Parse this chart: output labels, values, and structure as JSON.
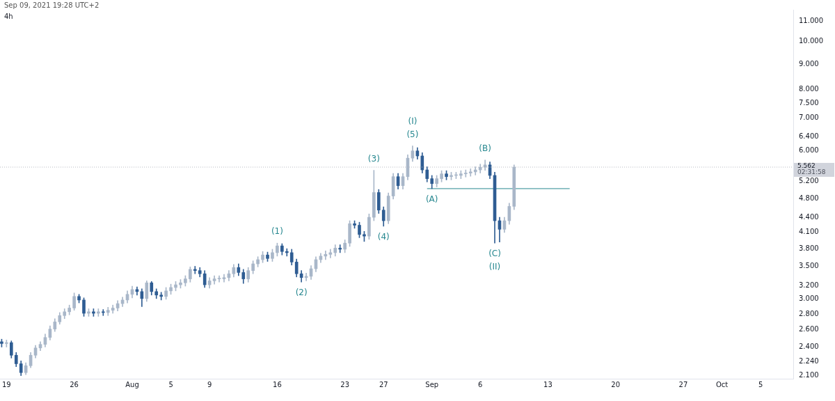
{
  "chart_data": {
    "type": "candlestick",
    "title": "4h",
    "x": [
      "2021-07-18T12:00",
      "2021-07-19T00:00",
      "2021-07-19T12:00",
      "2021-07-20T00:00",
      "2021-07-20T12:00",
      "2021-07-21T00:00",
      "2021-07-21T12:00",
      "2021-07-22T00:00",
      "2021-07-22T12:00",
      "2021-07-23T00:00",
      "2021-07-23T12:00",
      "2021-07-24T00:00",
      "2021-07-24T12:00",
      "2021-07-25T00:00",
      "2021-07-25T12:00",
      "2021-07-26T00:00",
      "2021-07-26T12:00",
      "2021-07-27T00:00",
      "2021-07-27T12:00",
      "2021-07-28T00:00",
      "2021-07-28T12:00",
      "2021-07-29T00:00",
      "2021-07-29T12:00",
      "2021-07-30T00:00",
      "2021-07-30T12:00",
      "2021-07-31T00:00",
      "2021-07-31T12:00",
      "2021-08-01T00:00",
      "2021-08-01T12:00",
      "2021-08-02T00:00",
      "2021-08-02T12:00",
      "2021-08-03T00:00",
      "2021-08-03T12:00",
      "2021-08-04T00:00",
      "2021-08-04T12:00",
      "2021-08-05T00:00",
      "2021-08-05T12:00",
      "2021-08-06T00:00",
      "2021-08-06T12:00",
      "2021-08-07T00:00",
      "2021-08-07T12:00",
      "2021-08-08T00:00",
      "2021-08-08T12:00",
      "2021-08-09T00:00",
      "2021-08-09T12:00",
      "2021-08-10T00:00",
      "2021-08-10T12:00",
      "2021-08-11T00:00",
      "2021-08-11T12:00",
      "2021-08-12T00:00",
      "2021-08-12T12:00",
      "2021-08-13T00:00",
      "2021-08-13T12:00",
      "2021-08-14T00:00",
      "2021-08-14T12:00",
      "2021-08-15T00:00",
      "2021-08-15T12:00",
      "2021-08-16T00:00",
      "2021-08-16T12:00",
      "2021-08-17T00:00",
      "2021-08-17T12:00",
      "2021-08-18T00:00",
      "2021-08-18T12:00",
      "2021-08-19T00:00",
      "2021-08-19T12:00",
      "2021-08-20T00:00",
      "2021-08-20T12:00",
      "2021-08-21T00:00",
      "2021-08-21T12:00",
      "2021-08-22T00:00",
      "2021-08-22T12:00",
      "2021-08-23T00:00",
      "2021-08-23T12:00",
      "2021-08-24T00:00",
      "2021-08-24T12:00",
      "2021-08-25T00:00",
      "2021-08-25T12:00",
      "2021-08-26T00:00",
      "2021-08-26T12:00",
      "2021-08-27T00:00",
      "2021-08-27T12:00",
      "2021-08-28T00:00",
      "2021-08-28T12:00",
      "2021-08-29T00:00",
      "2021-08-29T12:00",
      "2021-08-30T00:00",
      "2021-08-30T12:00",
      "2021-08-31T00:00",
      "2021-08-31T12:00",
      "2021-09-01T00:00",
      "2021-09-01T12:00",
      "2021-09-02T00:00",
      "2021-09-02T12:00",
      "2021-09-03T00:00",
      "2021-09-03T12:00",
      "2021-09-04T00:00",
      "2021-09-04T12:00",
      "2021-09-05T00:00",
      "2021-09-05T12:00",
      "2021-09-06T00:00",
      "2021-09-06T12:00",
      "2021-09-07T00:00",
      "2021-09-07T12:00",
      "2021-09-08T00:00",
      "2021-09-08T12:00",
      "2021-09-09T00:00",
      "2021-09-09T12:00"
    ],
    "ohlc": [
      [
        2.46,
        2.49,
        2.4,
        2.44
      ],
      [
        2.44,
        2.48,
        2.4,
        2.45
      ],
      [
        2.45,
        2.47,
        2.28,
        2.31
      ],
      [
        2.31,
        2.34,
        2.19,
        2.22
      ],
      [
        2.22,
        2.25,
        2.1,
        2.13
      ],
      [
        2.13,
        2.23,
        2.11,
        2.2
      ],
      [
        2.2,
        2.34,
        2.18,
        2.31
      ],
      [
        2.31,
        2.42,
        2.28,
        2.39
      ],
      [
        2.39,
        2.46,
        2.36,
        2.43
      ],
      [
        2.43,
        2.55,
        2.4,
        2.51
      ],
      [
        2.51,
        2.65,
        2.48,
        2.61
      ],
      [
        2.61,
        2.74,
        2.58,
        2.7
      ],
      [
        2.7,
        2.82,
        2.67,
        2.78
      ],
      [
        2.78,
        2.87,
        2.74,
        2.83
      ],
      [
        2.83,
        2.92,
        2.79,
        2.88
      ],
      [
        2.88,
        3.09,
        2.85,
        3.04
      ],
      [
        3.04,
        3.07,
        2.95,
        2.99
      ],
      [
        2.99,
        3.02,
        2.77,
        2.81
      ],
      [
        2.81,
        2.87,
        2.77,
        2.83
      ],
      [
        2.83,
        2.87,
        2.77,
        2.81
      ],
      [
        2.81,
        2.87,
        2.77,
        2.83
      ],
      [
        2.83,
        2.86,
        2.78,
        2.82
      ],
      [
        2.82,
        2.89,
        2.78,
        2.85
      ],
      [
        2.85,
        2.92,
        2.81,
        2.88
      ],
      [
        2.88,
        2.98,
        2.84,
        2.94
      ],
      [
        2.94,
        3.03,
        2.9,
        2.99
      ],
      [
        2.99,
        3.12,
        2.95,
        3.07
      ],
      [
        3.07,
        3.19,
        3.02,
        3.14
      ],
      [
        3.14,
        3.18,
        3.06,
        3.11
      ],
      [
        3.11,
        3.15,
        2.9,
        3.01
      ],
      [
        3.01,
        3.27,
        2.97,
        3.24
      ],
      [
        3.24,
        3.26,
        3.06,
        3.11
      ],
      [
        3.11,
        3.15,
        3.01,
        3.06
      ],
      [
        3.06,
        3.1,
        2.99,
        3.04
      ],
      [
        3.04,
        3.17,
        3.0,
        3.12
      ],
      [
        3.12,
        3.22,
        3.07,
        3.17
      ],
      [
        3.17,
        3.26,
        3.12,
        3.21
      ],
      [
        3.21,
        3.29,
        3.16,
        3.24
      ],
      [
        3.24,
        3.35,
        3.19,
        3.3
      ],
      [
        3.3,
        3.49,
        3.25,
        3.45
      ],
      [
        3.45,
        3.5,
        3.38,
        3.43
      ],
      [
        3.43,
        3.48,
        3.33,
        3.38
      ],
      [
        3.38,
        3.43,
        3.17,
        3.21
      ],
      [
        3.21,
        3.32,
        3.16,
        3.27
      ],
      [
        3.27,
        3.35,
        3.22,
        3.3
      ],
      [
        3.3,
        3.35,
        3.25,
        3.3
      ],
      [
        3.3,
        3.37,
        3.25,
        3.32
      ],
      [
        3.32,
        3.43,
        3.27,
        3.38
      ],
      [
        3.38,
        3.53,
        3.33,
        3.48
      ],
      [
        3.48,
        3.54,
        3.35,
        3.4
      ],
      [
        3.4,
        3.45,
        3.23,
        3.3
      ],
      [
        3.3,
        3.48,
        3.25,
        3.43
      ],
      [
        3.43,
        3.59,
        3.38,
        3.54
      ],
      [
        3.54,
        3.66,
        3.49,
        3.61
      ],
      [
        3.61,
        3.75,
        3.56,
        3.69
      ],
      [
        3.69,
        3.74,
        3.58,
        3.63
      ],
      [
        3.63,
        3.79,
        3.58,
        3.73
      ],
      [
        3.73,
        3.9,
        3.67,
        3.85
      ],
      [
        3.85,
        3.89,
        3.69,
        3.75
      ],
      [
        3.75,
        3.8,
        3.67,
        3.73
      ],
      [
        3.73,
        3.79,
        3.52,
        3.57
      ],
      [
        3.57,
        3.62,
        3.33,
        3.38
      ],
      [
        3.38,
        3.43,
        3.25,
        3.32
      ],
      [
        3.32,
        3.39,
        3.27,
        3.34
      ],
      [
        3.34,
        3.51,
        3.29,
        3.46
      ],
      [
        3.46,
        3.66,
        3.41,
        3.61
      ],
      [
        3.61,
        3.72,
        3.56,
        3.67
      ],
      [
        3.67,
        3.76,
        3.61,
        3.7
      ],
      [
        3.7,
        3.79,
        3.64,
        3.73
      ],
      [
        3.73,
        3.87,
        3.67,
        3.81
      ],
      [
        3.81,
        3.87,
        3.73,
        3.79
      ],
      [
        3.79,
        3.96,
        3.73,
        3.9
      ],
      [
        3.9,
        4.33,
        3.84,
        4.27
      ],
      [
        4.27,
        4.33,
        4.18,
        4.24
      ],
      [
        4.24,
        4.3,
        4.0,
        4.06
      ],
      [
        4.06,
        4.12,
        3.93,
        4.03
      ],
      [
        4.03,
        4.47,
        3.97,
        4.4
      ],
      [
        4.4,
        5.48,
        4.33,
        4.94
      ],
      [
        4.94,
        5.01,
        4.48,
        4.55
      ],
      [
        4.55,
        4.62,
        4.22,
        4.33
      ],
      [
        4.33,
        4.93,
        4.27,
        4.86
      ],
      [
        4.86,
        5.4,
        4.79,
        5.32
      ],
      [
        5.32,
        5.4,
        5.02,
        5.1
      ],
      [
        5.1,
        5.4,
        5.02,
        5.32
      ],
      [
        5.32,
        5.89,
        5.24,
        5.8
      ],
      [
        5.8,
        6.14,
        5.71,
        6.0
      ],
      [
        6.0,
        6.09,
        5.77,
        5.86
      ],
      [
        5.86,
        5.95,
        5.41,
        5.49
      ],
      [
        5.49,
        5.57,
        5.19,
        5.27
      ],
      [
        5.27,
        5.35,
        5.03,
        5.15
      ],
      [
        5.15,
        5.35,
        5.07,
        5.27
      ],
      [
        5.27,
        5.47,
        5.19,
        5.39
      ],
      [
        5.39,
        5.47,
        5.24,
        5.32
      ],
      [
        5.32,
        5.43,
        5.24,
        5.35
      ],
      [
        5.35,
        5.43,
        5.27,
        5.35
      ],
      [
        5.35,
        5.47,
        5.27,
        5.39
      ],
      [
        5.39,
        5.49,
        5.31,
        5.41
      ],
      [
        5.41,
        5.52,
        5.33,
        5.44
      ],
      [
        5.44,
        5.57,
        5.36,
        5.49
      ],
      [
        5.49,
        5.64,
        5.41,
        5.56
      ],
      [
        5.56,
        5.75,
        5.48,
        5.62
      ],
      [
        5.62,
        5.7,
        5.27,
        5.35
      ],
      [
        5.35,
        5.43,
        3.9,
        4.33
      ],
      [
        4.33,
        4.4,
        3.92,
        4.16
      ],
      [
        4.16,
        4.4,
        4.1,
        4.33
      ],
      [
        4.33,
        4.7,
        4.26,
        4.63
      ],
      [
        4.63,
        5.62,
        4.56,
        5.562
      ]
    ],
    "series": [
      {
        "type": "line",
        "color": "#26878f",
        "x": [
          "2021-08-31T12:00",
          "2021-09-15T06:00"
        ],
        "values": [
          5.03,
          5.03
        ]
      }
    ],
    "log": true,
    "grid": false,
    "legend": false,
    "xlim": [
      "2021-07-18T08:00",
      "2021-10-08T09:00"
    ],
    "xticks": [
      {
        "value": "2021-07-19",
        "label": "19"
      },
      {
        "value": "2021-07-26",
        "label": "26"
      },
      {
        "value": "2021-08-01",
        "label": "Aug"
      },
      {
        "value": "2021-08-05",
        "label": "5"
      },
      {
        "value": "2021-08-09",
        "label": "9"
      },
      {
        "value": "2021-08-16",
        "label": "16"
      },
      {
        "value": "2021-08-23",
        "label": "23"
      },
      {
        "value": "2021-08-27",
        "label": "27"
      },
      {
        "value": "2021-09-01",
        "label": "Sep"
      },
      {
        "value": "2021-09-06",
        "label": "6"
      },
      {
        "value": "2021-09-13",
        "label": "13"
      },
      {
        "value": "2021-09-20",
        "label": "20"
      },
      {
        "value": "2021-09-27",
        "label": "27"
      },
      {
        "value": "2021-10-01",
        "label": "Oct"
      },
      {
        "value": "2021-10-05",
        "label": "5"
      }
    ],
    "ylim": [
      2.07,
      11.6
    ],
    "yticks": [
      {
        "value": 2.1,
        "label": "2.100"
      },
      {
        "value": 2.24,
        "label": "2.240"
      },
      {
        "value": 2.4,
        "label": "2.400"
      },
      {
        "value": 2.6,
        "label": "2.600"
      },
      {
        "value": 2.8,
        "label": "2.800"
      },
      {
        "value": 3,
        "label": "3.000"
      },
      {
        "value": 3.2,
        "label": "3.200"
      },
      {
        "value": 3.5,
        "label": "3.500"
      },
      {
        "value": 3.8,
        "label": "3.800"
      },
      {
        "value": 4.1,
        "label": "4.100"
      },
      {
        "value": 4.4,
        "label": "4.400"
      },
      {
        "value": 4.8,
        "label": "4.800"
      },
      {
        "value": 5.2,
        "label": "5.200"
      },
      {
        "value": 6,
        "label": "6.000"
      },
      {
        "value": 6.4,
        "label": "6.400"
      },
      {
        "value": 7,
        "label": "7.000"
      },
      {
        "value": 7.5,
        "label": "7.500"
      },
      {
        "value": 8,
        "label": "8.000"
      },
      {
        "value": 9,
        "label": "9.000"
      },
      {
        "value": 10,
        "label": "10.000"
      },
      {
        "value": 11,
        "label": "11.000"
      }
    ],
    "ref_lines": [
      {
        "axis": "y",
        "value": 5.562,
        "label": "5.562",
        "color": "#b2b5be"
      }
    ],
    "annotations": [
      "Sep 09, 2021 19:28 UTC+2",
      "02:31:58",
      {
        "text": "(1)",
        "x": "2021-08-16T00:00",
        "y": 3.9
      },
      {
        "text": "(2)",
        "x": "2021-08-18T12:00",
        "y": 3.25
      },
      {
        "text": "(3)",
        "x": "2021-08-26T00:00",
        "y": 5.48
      },
      {
        "text": "(4)",
        "x": "2021-08-27T00:00",
        "y": 4.22
      },
      {
        "text": "(5)",
        "x": "2021-08-30T00:00",
        "y": 6.14
      },
      {
        "text": "(I)",
        "x": "2021-08-30T00:00",
        "y": 6.14
      },
      {
        "text": "(A)",
        "x": "2021-09-01T00:00",
        "y": 5.03
      },
      {
        "text": "(B)",
        "x": "2021-09-06T12:00",
        "y": 5.75
      },
      {
        "text": "(C)",
        "x": "2021-09-07T12:00",
        "y": 3.9
      },
      {
        "text": "(II)",
        "x": "2021-09-07T12:00",
        "y": 3.9
      }
    ]
  }
}
